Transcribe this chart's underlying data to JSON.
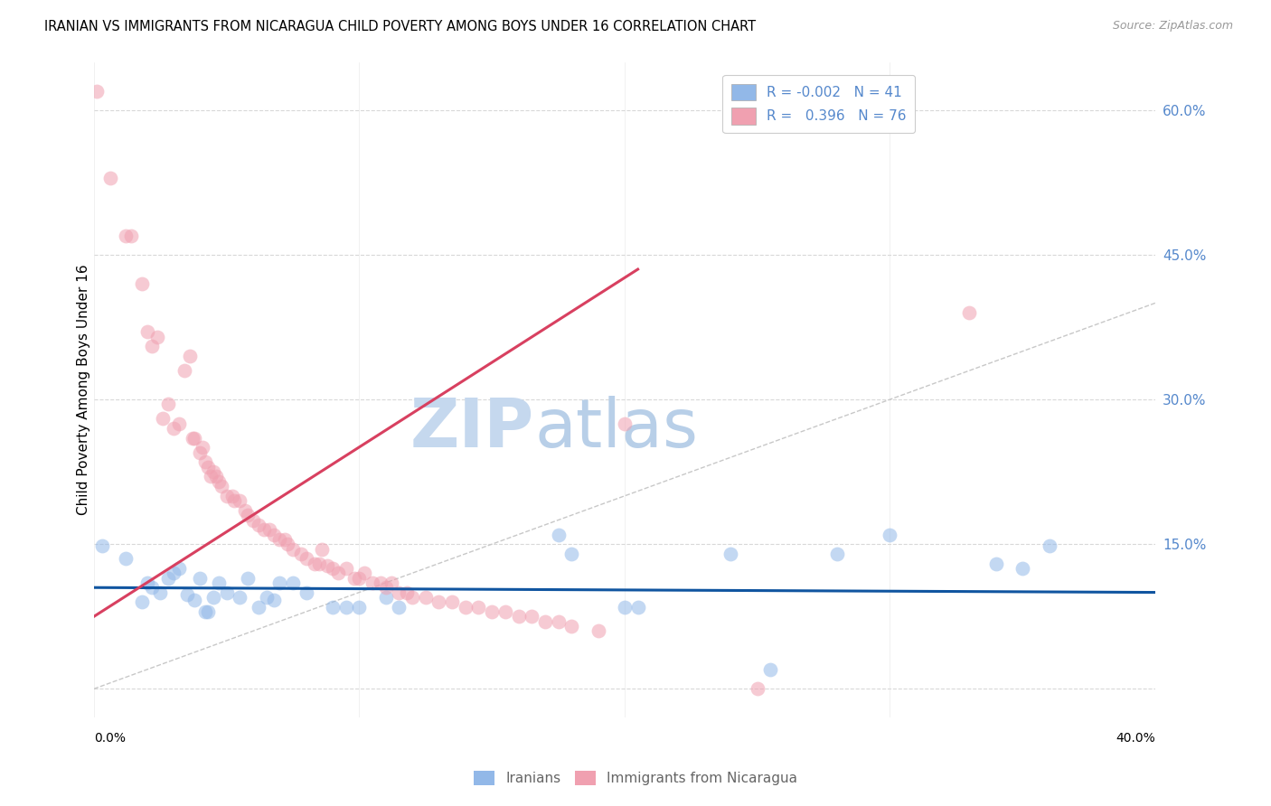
{
  "title": "IRANIAN VS IMMIGRANTS FROM NICARAGUA CHILD POVERTY AMONG BOYS UNDER 16 CORRELATION CHART",
  "source": "Source: ZipAtlas.com",
  "ylabel": "Child Poverty Among Boys Under 16",
  "xmin": 0.0,
  "xmax": 40.0,
  "ymin": -3.0,
  "ymax": 65.0,
  "yticks": [
    0,
    15,
    30,
    45,
    60
  ],
  "ytick_labels": [
    "",
    "15.0%",
    "30.0%",
    "45.0%",
    "60.0%"
  ],
  "xtick_labels_pos": [
    0.0,
    40.0
  ],
  "xtick_labels": [
    "0.0%",
    "40.0%"
  ],
  "iranians_color": "#92b8e8",
  "nicaragua_color": "#f0a0b0",
  "iranians_line_color": "#1055a0",
  "nicaragua_line_color": "#d84060",
  "diagonal_color": "#c8c8c8",
  "grid_color": "#d8d8d8",
  "watermark_zip": "ZIP",
  "watermark_atlas": "atlas",
  "watermark_color_zip": "#c8d8ee",
  "watermark_color_atlas": "#b0c8e8",
  "iranians_scatter": [
    [
      0.3,
      14.8
    ],
    [
      1.2,
      13.5
    ],
    [
      1.8,
      9.0
    ],
    [
      2.0,
      11.0
    ],
    [
      2.2,
      10.5
    ],
    [
      2.5,
      10.0
    ],
    [
      2.8,
      11.5
    ],
    [
      3.0,
      12.0
    ],
    [
      3.2,
      12.5
    ],
    [
      3.5,
      9.8
    ],
    [
      3.8,
      9.2
    ],
    [
      4.0,
      11.5
    ],
    [
      4.2,
      8.0
    ],
    [
      4.3,
      8.0
    ],
    [
      4.5,
      9.5
    ],
    [
      4.7,
      11.0
    ],
    [
      5.0,
      10.0
    ],
    [
      5.5,
      9.5
    ],
    [
      5.8,
      11.5
    ],
    [
      6.2,
      8.5
    ],
    [
      6.5,
      9.5
    ],
    [
      6.8,
      9.2
    ],
    [
      7.0,
      11.0
    ],
    [
      7.5,
      11.0
    ],
    [
      8.0,
      10.0
    ],
    [
      9.0,
      8.5
    ],
    [
      9.5,
      8.5
    ],
    [
      10.0,
      8.5
    ],
    [
      11.0,
      9.5
    ],
    [
      11.5,
      8.5
    ],
    [
      17.5,
      16.0
    ],
    [
      18.0,
      14.0
    ],
    [
      20.0,
      8.5
    ],
    [
      20.5,
      8.5
    ],
    [
      24.0,
      14.0
    ],
    [
      28.0,
      14.0
    ],
    [
      30.0,
      16.0
    ],
    [
      34.0,
      13.0
    ],
    [
      35.0,
      12.5
    ],
    [
      36.0,
      14.8
    ],
    [
      25.5,
      2.0
    ]
  ],
  "nicaragua_scatter": [
    [
      0.1,
      62.0
    ],
    [
      0.6,
      53.0
    ],
    [
      1.2,
      47.0
    ],
    [
      1.4,
      47.0
    ],
    [
      1.8,
      42.0
    ],
    [
      2.0,
      37.0
    ],
    [
      2.2,
      35.5
    ],
    [
      2.4,
      36.5
    ],
    [
      2.6,
      28.0
    ],
    [
      2.8,
      29.5
    ],
    [
      3.0,
      27.0
    ],
    [
      3.2,
      27.5
    ],
    [
      3.4,
      33.0
    ],
    [
      3.6,
      34.5
    ],
    [
      3.7,
      26.0
    ],
    [
      3.8,
      26.0
    ],
    [
      4.0,
      24.5
    ],
    [
      4.1,
      25.0
    ],
    [
      4.2,
      23.5
    ],
    [
      4.3,
      23.0
    ],
    [
      4.4,
      22.0
    ],
    [
      4.5,
      22.5
    ],
    [
      4.6,
      22.0
    ],
    [
      4.7,
      21.5
    ],
    [
      4.8,
      21.0
    ],
    [
      5.0,
      20.0
    ],
    [
      5.2,
      20.0
    ],
    [
      5.3,
      19.5
    ],
    [
      5.5,
      19.5
    ],
    [
      5.7,
      18.5
    ],
    [
      5.8,
      18.0
    ],
    [
      6.0,
      17.5
    ],
    [
      6.2,
      17.0
    ],
    [
      6.4,
      16.5
    ],
    [
      6.6,
      16.5
    ],
    [
      6.8,
      16.0
    ],
    [
      7.0,
      15.5
    ],
    [
      7.2,
      15.5
    ],
    [
      7.3,
      15.0
    ],
    [
      7.5,
      14.5
    ],
    [
      7.8,
      14.0
    ],
    [
      8.0,
      13.5
    ],
    [
      8.3,
      13.0
    ],
    [
      8.5,
      13.0
    ],
    [
      8.6,
      14.5
    ],
    [
      8.8,
      12.8
    ],
    [
      9.0,
      12.5
    ],
    [
      9.2,
      12.0
    ],
    [
      9.5,
      12.5
    ],
    [
      9.8,
      11.5
    ],
    [
      10.0,
      11.5
    ],
    [
      10.2,
      12.0
    ],
    [
      10.5,
      11.0
    ],
    [
      10.8,
      11.0
    ],
    [
      11.0,
      10.5
    ],
    [
      11.2,
      11.0
    ],
    [
      11.5,
      10.0
    ],
    [
      11.8,
      10.0
    ],
    [
      12.0,
      9.5
    ],
    [
      12.5,
      9.5
    ],
    [
      13.0,
      9.0
    ],
    [
      13.5,
      9.0
    ],
    [
      14.0,
      8.5
    ],
    [
      14.5,
      8.5
    ],
    [
      15.0,
      8.0
    ],
    [
      15.5,
      8.0
    ],
    [
      16.0,
      7.5
    ],
    [
      16.5,
      7.5
    ],
    [
      17.0,
      7.0
    ],
    [
      17.5,
      7.0
    ],
    [
      18.0,
      6.5
    ],
    [
      19.0,
      6.0
    ],
    [
      33.0,
      39.0
    ],
    [
      20.0,
      27.5
    ],
    [
      25.0,
      0.0
    ]
  ],
  "iranians_line": {
    "x": [
      0.0,
      40.0
    ],
    "y": [
      10.5,
      10.0
    ]
  },
  "nicaragua_line": {
    "x": [
      0.0,
      20.5
    ],
    "y": [
      7.5,
      43.5
    ]
  },
  "diagonal_line": {
    "x": [
      0.0,
      65.0
    ],
    "y": [
      0.0,
      65.0
    ]
  },
  "background_color": "#ffffff",
  "legend_label_color": "#5588cc",
  "bottom_legend_color": "#666666"
}
